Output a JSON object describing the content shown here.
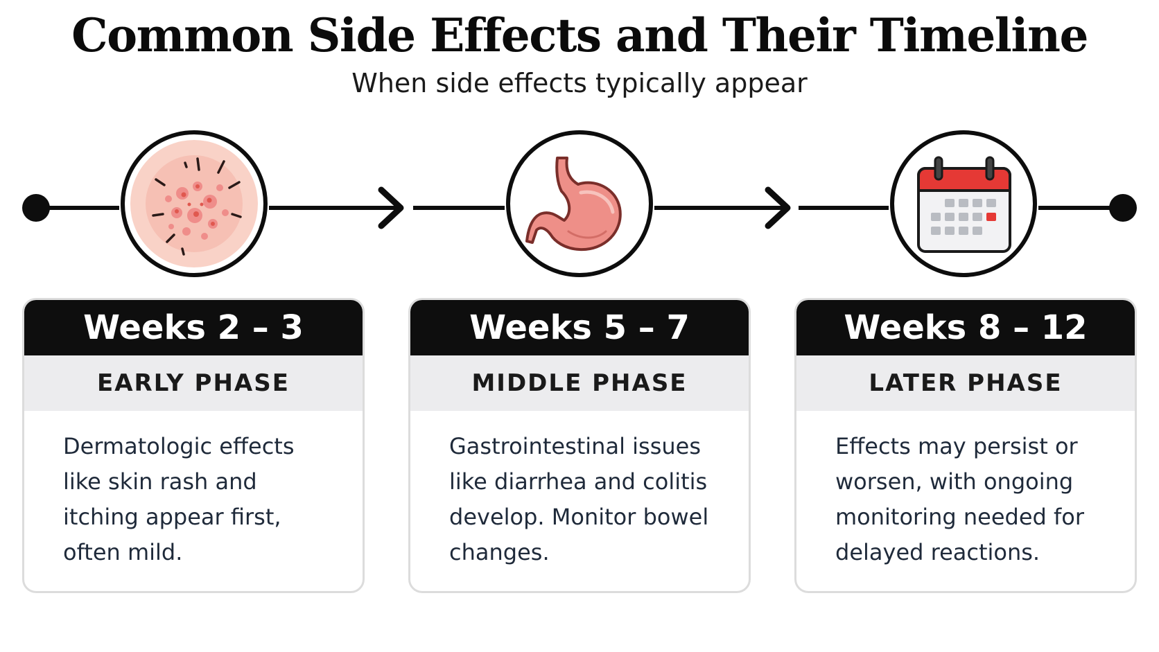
{
  "title": "Common Side Effects and Their Timeline",
  "subtitle": "When side effects typically appear",
  "phases": [
    {
      "weeks": "Weeks 2 – 3",
      "phase": "EARLY PHASE",
      "description": "Dermatologic effects like skin rash and itching appear first, often mild.",
      "icon": "skin-rash-icon"
    },
    {
      "weeks": "Weeks 5 – 7",
      "phase": "MIDDLE PHASE",
      "description": "Gastrointestinal issues like diarrhea and colitis develop. Monitor bowel changes.",
      "icon": "stomach-icon"
    },
    {
      "weeks": "Weeks 8 – 12",
      "phase": "LATER PHASE",
      "description": "Effects may persist or worsen, with ongoing monitoring needed for delayed reactions.",
      "icon": "calendar-icon"
    }
  ],
  "colors": {
    "line": "#0d0d0d",
    "card_header": "#0e0e0e",
    "phase_band": "#ececee",
    "rash": "#f3a9a0",
    "stomach": "#ee8f88",
    "calendar_red": "#e53935"
  }
}
